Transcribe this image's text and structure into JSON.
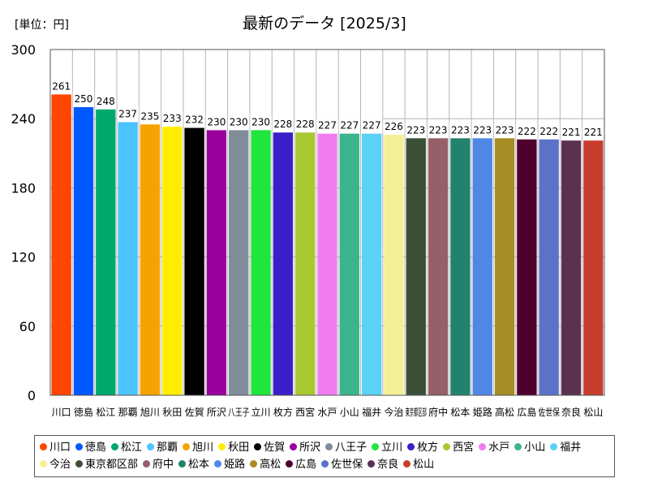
{
  "header": {
    "unit": "[単位：円]",
    "title": "最新のデータ [2025/3]"
  },
  "chart_data": {
    "type": "bar",
    "title": "最新のデータ [2025/3]",
    "ylabel": "[単位：円]",
    "ylim": [
      0,
      300
    ],
    "yticks": [
      0,
      60,
      120,
      180,
      240,
      300
    ],
    "grid": true,
    "legend_position": "bottom",
    "categories": [
      "川口",
      "徳島",
      "松江",
      "那覇",
      "旭川",
      "秋田",
      "佐賀",
      "所沢",
      "八王子",
      "立川",
      "枚方",
      "西宮",
      "水戸",
      "小山",
      "福井",
      "今治",
      "東京都区部",
      "府中",
      "松本",
      "姫路",
      "高松",
      "広島",
      "佐世保",
      "奈良",
      "松山"
    ],
    "values": [
      261,
      250,
      248,
      237,
      235,
      233,
      232,
      230,
      230,
      230,
      228,
      228,
      227,
      227,
      227,
      226,
      223,
      223,
      223,
      223,
      223,
      222,
      222,
      221,
      221
    ],
    "colors": [
      "#ff4500",
      "#0059ff",
      "#00a86b",
      "#4dc3ff",
      "#f5a300",
      "#ffee00",
      "#000000",
      "#99009e",
      "#808c99",
      "#1ee63c",
      "#3a1fc8",
      "#a8c832",
      "#f07df0",
      "#3cb48c",
      "#5ad2f5",
      "#f5f096",
      "#3c5037",
      "#965f69",
      "#23826e",
      "#5087e6",
      "#a58c23",
      "#50002d",
      "#5a73c8",
      "#5a3250",
      "#c83c2d"
    ]
  }
}
